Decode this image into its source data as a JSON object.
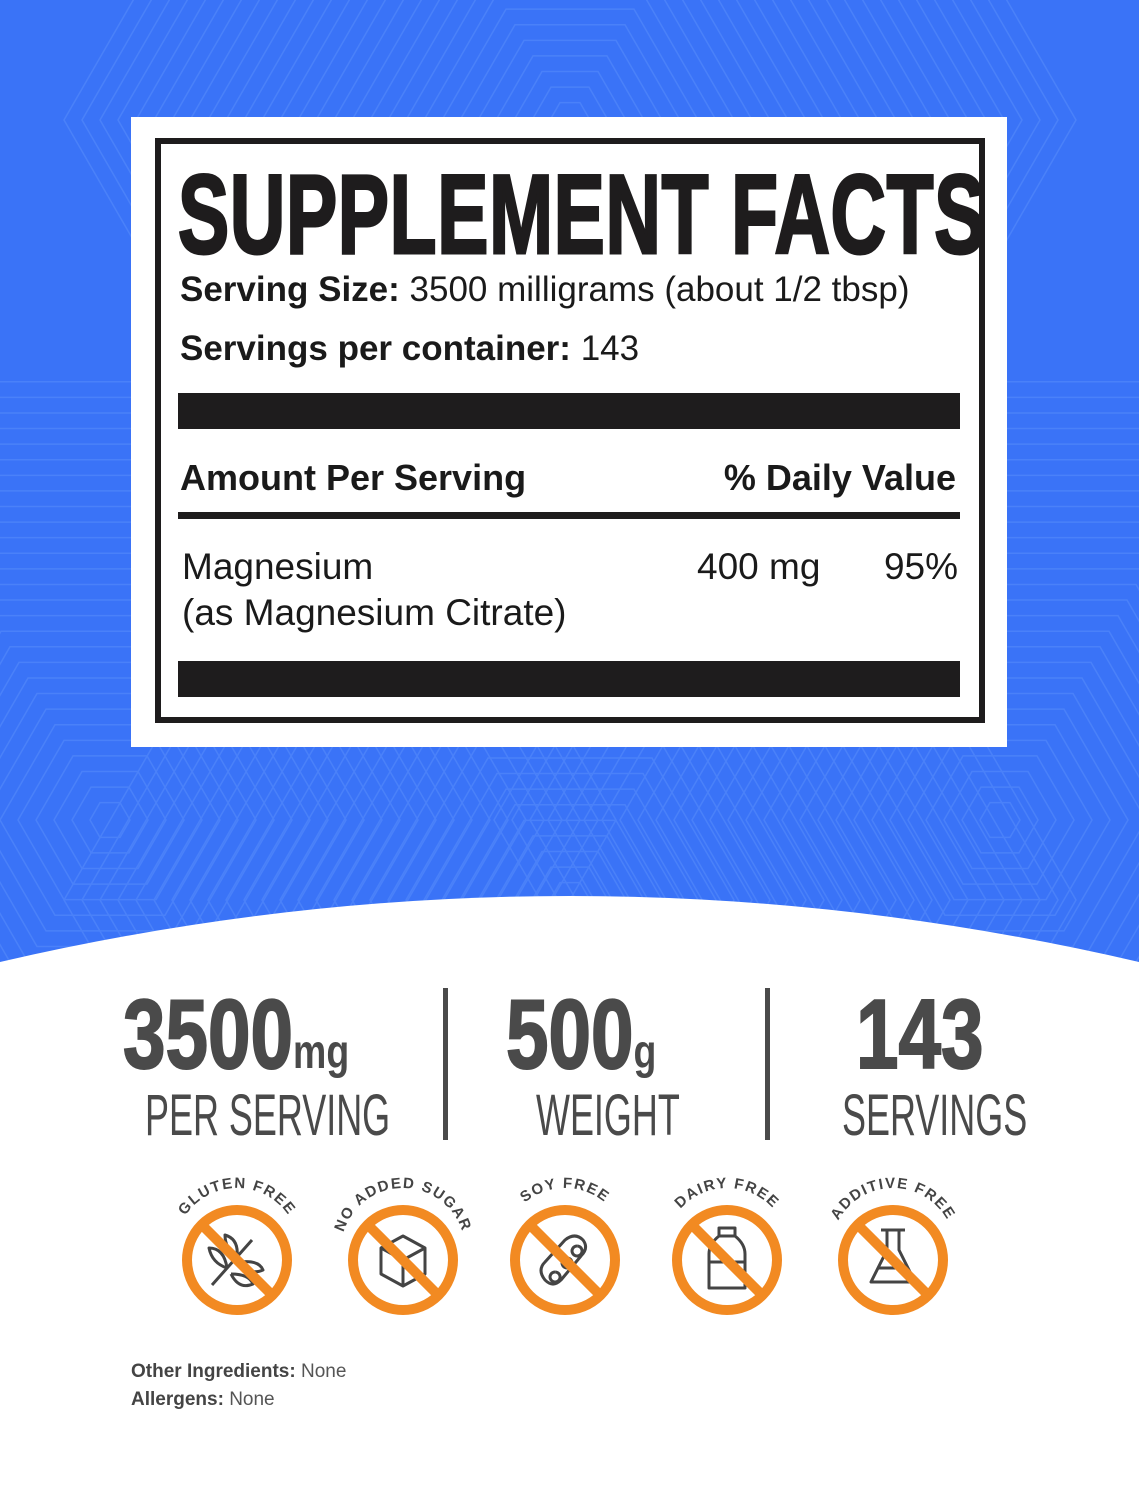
{
  "colors": {
    "background": "#3a73f7",
    "orange": "#f28a22",
    "text_dark": "#1e1c1d",
    "text_grey": "#4a4a4a"
  },
  "facts": {
    "title": "SUPPLEMENT FACTS",
    "serving_size_label": "Serving Size:",
    "serving_size_value": "3500 milligrams (about 1/2 tbsp)",
    "servings_label": "Servings per container:",
    "servings_value": "143",
    "amount_header": "Amount Per Serving",
    "dv_header": "% Daily Value",
    "nutrient_name": "Magnesium",
    "nutrient_source": "(as Magnesium Citrate)",
    "nutrient_amount": "400 mg",
    "nutrient_dv": "95%"
  },
  "stats": [
    {
      "value": "3500",
      "unit": "mg",
      "label": "PER SERVING"
    },
    {
      "value": "500",
      "unit": "g",
      "label": "WEIGHT"
    },
    {
      "value": "143",
      "unit": "",
      "label": "SERVINGS"
    }
  ],
  "badges": [
    {
      "label": "GLUTEN FREE",
      "icon": "wheat-icon"
    },
    {
      "label": "NO ADDED SUGAR",
      "icon": "sugar-cube-icon"
    },
    {
      "label": "SOY FREE",
      "icon": "soybean-icon"
    },
    {
      "label": "DAIRY FREE",
      "icon": "milk-bottle-icon"
    },
    {
      "label": "ADDITIVE FREE",
      "icon": "flask-icon"
    }
  ],
  "footer": {
    "other_label": "Other Ingredients:",
    "other_value": "None",
    "allergens_label": "Allergens:",
    "allergens_value": "None"
  }
}
